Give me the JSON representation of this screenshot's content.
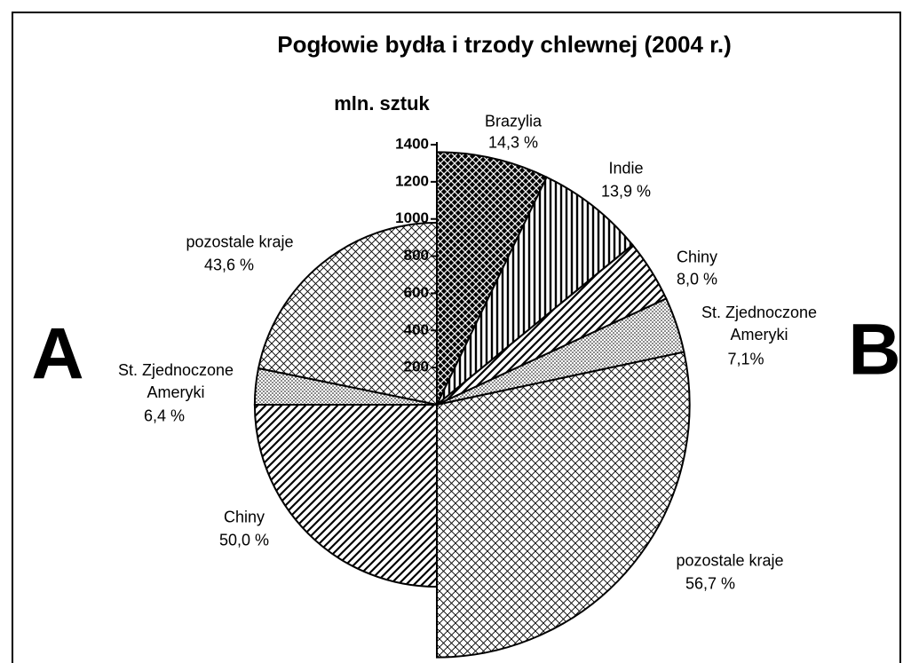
{
  "chart_data": {
    "type": "pie",
    "title": "Pogłowie bydła i trzody chlewnej (2004 r.)",
    "y_label": "mln. sztuk",
    "ylim": [
      0,
      1400
    ],
    "yticks": [
      200,
      400,
      600,
      800,
      1000,
      1200,
      1400
    ],
    "series": [
      {
        "name": "A",
        "total": 980,
        "categories": [
          "pozostale kraje",
          "St. Zjednoczone\nAmeryki",
          "Chiny"
        ],
        "values": [
          43.6,
          6.4,
          50.0
        ],
        "value_labels": [
          "43,6 %",
          "6,4 %",
          "50,0 %"
        ],
        "fills": [
          "cross",
          "dots",
          "diag"
        ]
      },
      {
        "name": "B",
        "total": 1360,
        "categories": [
          "Brazylia",
          "Indie",
          "Chiny",
          "St. Zjednoczone\nAmeryki",
          "pozostale kraje"
        ],
        "values": [
          14.3,
          13.9,
          8.0,
          7.1,
          56.7
        ],
        "value_labels": [
          "14,3 %",
          "13,9 %",
          "8,0 %",
          "7,1%",
          "56,7 %"
        ],
        "fills": [
          "brick",
          "vert",
          "diag",
          "dots",
          "cross"
        ]
      }
    ]
  }
}
